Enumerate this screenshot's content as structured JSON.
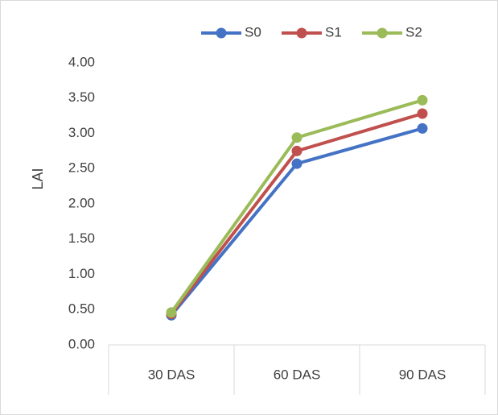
{
  "chart_data": {
    "type": "line",
    "categories": [
      "30 DAS",
      "60 DAS",
      "90 DAS"
    ],
    "series": [
      {
        "name": "S0",
        "values": [
          0.42,
          2.57,
          3.07
        ],
        "color": "#4472C4"
      },
      {
        "name": "S1",
        "values": [
          0.44,
          2.75,
          3.28
        ],
        "color": "#C0504D"
      },
      {
        "name": "S2",
        "values": [
          0.46,
          2.94,
          3.47
        ],
        "color": "#9BBB59"
      }
    ],
    "ylabel": "LAI",
    "xlabel": "",
    "ylim": [
      0,
      4
    ],
    "yticks": [
      "0.00",
      "0.50",
      "1.00",
      "1.50",
      "2.00",
      "2.50",
      "3.00",
      "3.50",
      "4.00"
    ],
    "legend": "top",
    "grid": false
  }
}
